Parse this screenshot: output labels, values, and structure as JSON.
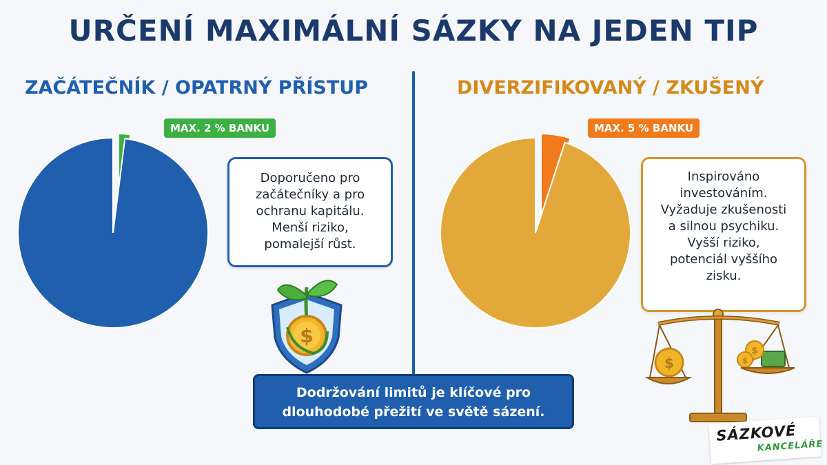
{
  "title": "URČENÍ MAXIMÁLNÍ SÁZKY NA JEDEN TIP",
  "left": {
    "heading": "ZAČÁTEČNÍK / OPATRNÝ PŘÍSTUP",
    "label": "MAX. 2 % BANKU",
    "callout": [
      "Doporučeno pro",
      "začátečníky a pro",
      "ochranu kapitálu.",
      "Menší riziko,",
      "pomalejší růst."
    ]
  },
  "right": {
    "heading": "DIVERZIFIKOVANÝ / ZKUŠENÝ",
    "label": "MAX. 5 % BANKU",
    "callout": [
      "Inspirováno",
      "investováním.",
      "Vyžaduje zkušenosti",
      "a silnou psychiku.",
      "Vyšší riziko,",
      "potenciál vyššího",
      "zisku."
    ]
  },
  "footer": [
    "Dodržování limitů je klíčové pro",
    "dlouhodobé přežití ve světě sázení."
  ],
  "logo": {
    "top": "SÁZKOVÉ",
    "bottom": "KANCELÁŘE"
  },
  "colors": {
    "title": "#1b3a6b",
    "left_pie": "#1f5fae",
    "left_slice": "#3cb043",
    "right_pie": "#e3a83a",
    "right_slice": "#f07a1c"
  },
  "chart_data": [
    {
      "type": "pie",
      "title": "ZAČÁTEČNÍK / OPATRNÝ PŘÍSTUP",
      "slices": [
        {
          "label": "MAX. 2 % BANKU",
          "value": 2,
          "color": "#3cb043"
        },
        {
          "label": "",
          "value": 98,
          "color": "#1f5fae"
        }
      ]
    },
    {
      "type": "pie",
      "title": "DIVERZIFIKOVANÝ / ZKUŠENÝ",
      "slices": [
        {
          "label": "MAX. 5 % BANKU",
          "value": 5,
          "color": "#f07a1c"
        },
        {
          "label": "",
          "value": 95,
          "color": "#e3a83a"
        }
      ]
    }
  ]
}
